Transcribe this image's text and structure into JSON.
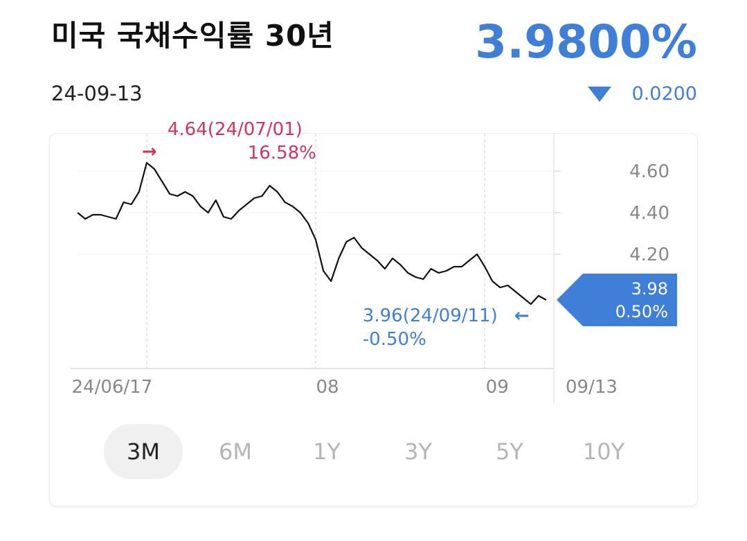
{
  "header": {
    "title": "미국 국채수익률 30년",
    "date": "24-09-13",
    "price": "3.9800%",
    "change_value": "0.0200",
    "change_direction": "down"
  },
  "colors": {
    "accent_blue": "#3f7fd8",
    "high_red": "#d0355c",
    "line": "#111111"
  },
  "annotations": {
    "high": {
      "line1": "4.64(24/07/01)",
      "line2": "16.58%"
    },
    "low": {
      "line1": "3.96(24/09/11)",
      "line2": "-0.50%"
    },
    "current": {
      "line1": "3.98",
      "line2": "0.50%"
    }
  },
  "chart_data": {
    "type": "line",
    "y_ticks": [
      "4.60",
      "4.40",
      "4.20"
    ],
    "x_ticks": [
      "24/06/17",
      "08",
      "09"
    ],
    "x_end_label": "09/13",
    "ylim": [
      3.65,
      4.75
    ],
    "grid": "vertical dashed at month boundaries",
    "series": [
      {
        "values": [
          4.4,
          4.37,
          4.39,
          4.39,
          4.38,
          4.37,
          4.45,
          4.44,
          4.5,
          4.64,
          4.61,
          4.55,
          4.49,
          4.48,
          4.5,
          4.48,
          4.43,
          4.4,
          4.46,
          4.38,
          4.37,
          4.41,
          4.44,
          4.47,
          4.48,
          4.53,
          4.5,
          4.45,
          4.43,
          4.4,
          4.35,
          4.27,
          4.12,
          4.07,
          4.18,
          4.26,
          4.28,
          4.23,
          4.2,
          4.17,
          4.13,
          4.18,
          4.15,
          4.11,
          4.09,
          4.08,
          4.13,
          4.11,
          4.12,
          4.14,
          4.14,
          4.17,
          4.2,
          4.14,
          4.07,
          4.04,
          4.05,
          4.02,
          3.99,
          3.96,
          4.0,
          3.98
        ]
      }
    ]
  },
  "tabs": [
    {
      "label": "3M",
      "active": true
    },
    {
      "label": "6M",
      "active": false
    },
    {
      "label": "1Y",
      "active": false
    },
    {
      "label": "3Y",
      "active": false
    },
    {
      "label": "5Y",
      "active": false
    },
    {
      "label": "10Y",
      "active": false
    }
  ]
}
